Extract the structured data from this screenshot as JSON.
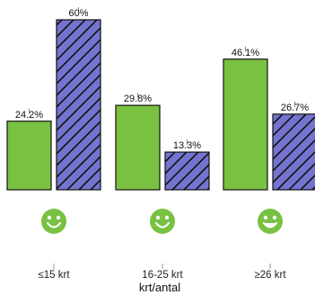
{
  "chart_data": {
    "type": "bar",
    "categories": [
      "≤15 krt",
      "16-25 krt",
      "≥26 krt"
    ],
    "series": [
      {
        "values": [
          24.2,
          29.8,
          46.1
        ],
        "labels": [
          "24.2%",
          "29.8%",
          "46.1%"
        ],
        "color": "#7ac142",
        "pattern": "solid"
      },
      {
        "values": [
          60,
          13.3,
          26.7
        ],
        "labels": [
          "60%",
          "13.3%",
          "26.7%"
        ],
        "color": "#7474d0",
        "pattern": "diagonal-hatch"
      }
    ],
    "xlabel": "krt/antal",
    "ylabel": "",
    "ylim": [
      0,
      60
    ],
    "grid": false,
    "legend": "none",
    "category_icon": "smiley-face-icon",
    "icon_color": "#78c142"
  }
}
